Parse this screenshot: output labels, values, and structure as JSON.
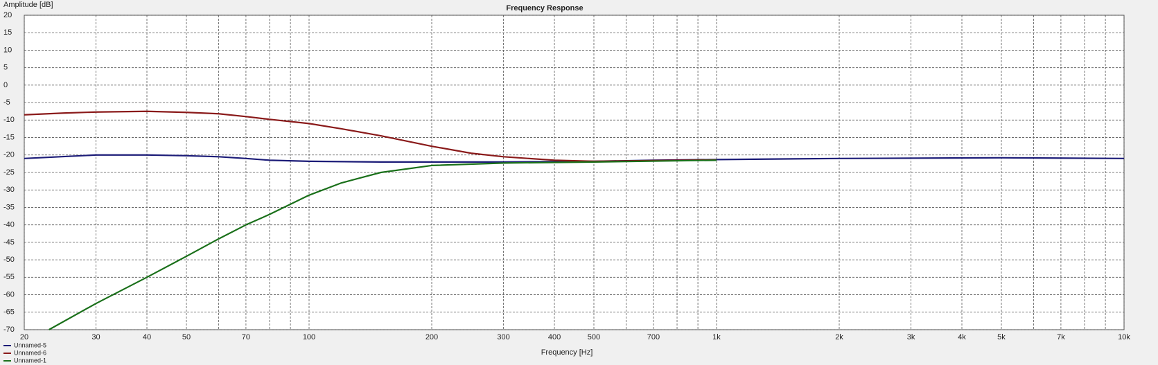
{
  "chart_data": {
    "type": "line",
    "title": "Frequency Response",
    "y_label": "Amplitude [dB]",
    "x_label": "Frequency [Hz]",
    "xscale": "log",
    "grid": true,
    "legend": "bottom-left",
    "xlim": [
      20,
      10000
    ],
    "xticks": [
      20,
      30,
      40,
      50,
      70,
      100,
      200,
      300,
      400,
      500,
      700,
      {
        "value": 1000,
        "label": "1k"
      },
      {
        "value": 2000,
        "label": "2k"
      },
      {
        "value": 3000,
        "label": "3k"
      },
      {
        "value": 4000,
        "label": "4k"
      },
      {
        "value": 5000,
        "label": "5k"
      },
      {
        "value": 7000,
        "label": "7k"
      },
      {
        "value": 10000,
        "label": "10k"
      }
    ],
    "xminor_ticks": [
      60,
      80,
      90,
      600,
      800,
      900,
      6000,
      8000,
      9000
    ],
    "ylim": [
      -70,
      20
    ],
    "yticks": [
      -70,
      -65,
      -60,
      -55,
      -50,
      -45,
      -40,
      -35,
      -30,
      -25,
      -20,
      -15,
      -10,
      -5,
      0,
      5,
      10,
      15,
      20
    ],
    "series": [
      {
        "name": "Unnamed-5",
        "color": "#1c1c78",
        "x": [
          20,
          30,
          40,
          50,
          60,
          70,
          80,
          100,
          150,
          200,
          300,
          500,
          700,
          1000,
          2000,
          5000,
          10000
        ],
        "values": [
          -21,
          -20,
          -20,
          -20.2,
          -20.5,
          -21,
          -21.5,
          -21.8,
          -22,
          -22,
          -22,
          -21.8,
          -21.5,
          -21.3,
          -21,
          -20.8,
          -21
        ]
      },
      {
        "name": "Unnamed-6",
        "color": "#8a1a1a",
        "x": [
          20,
          25,
          30,
          40,
          50,
          60,
          70,
          80,
          100,
          120,
          150,
          200,
          250,
          300,
          400,
          500,
          700,
          1000
        ],
        "values": [
          -8.5,
          -8,
          -7.7,
          -7.5,
          -7.8,
          -8.2,
          -9,
          -9.8,
          -11,
          -12.5,
          -14.5,
          -17.5,
          -19.5,
          -20.5,
          -21.5,
          -21.8,
          -21.6,
          -21.4
        ]
      },
      {
        "name": "Unnamed-1",
        "color": "#1a701a",
        "x": [
          23,
          30,
          40,
          50,
          60,
          70,
          80,
          100,
          120,
          150,
          200,
          300,
          500,
          1000
        ],
        "values": [
          -70,
          -62.5,
          -55,
          -49,
          -44,
          -40,
          -37,
          -31.5,
          -28,
          -25,
          -23,
          -22.3,
          -22,
          -21.5
        ]
      }
    ]
  }
}
